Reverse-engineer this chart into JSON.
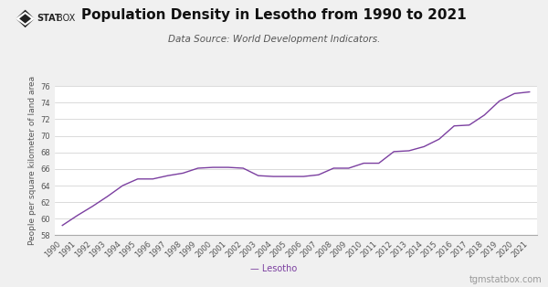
{
  "years": [
    1990,
    1991,
    1992,
    1993,
    1994,
    1995,
    1996,
    1997,
    1998,
    1999,
    2000,
    2001,
    2002,
    2003,
    2004,
    2005,
    2006,
    2007,
    2008,
    2009,
    2010,
    2011,
    2012,
    2013,
    2014,
    2015,
    2016,
    2017,
    2018,
    2019,
    2020,
    2021
  ],
  "values": [
    59.2,
    60.4,
    61.5,
    62.7,
    64.0,
    64.8,
    64.8,
    65.2,
    65.5,
    66.1,
    66.2,
    66.2,
    66.1,
    65.2,
    65.1,
    65.1,
    65.1,
    65.3,
    66.1,
    66.1,
    66.7,
    66.7,
    68.1,
    68.2,
    68.7,
    69.6,
    71.2,
    71.3,
    72.5,
    74.2,
    75.1,
    75.3
  ],
  "title": "Population Density in Lesotho from 1990 to 2021",
  "subtitle": "Data Source: World Development Indicators.",
  "ylabel": "People per square kilometer of land area",
  "legend_label": "Lesotho",
  "line_color": "#7B3FA0",
  "bg_color": "#f0f0f0",
  "plot_bg_color": "#ffffff",
  "ylim": [
    58,
    76
  ],
  "yticks": [
    58,
    60,
    62,
    64,
    66,
    68,
    70,
    72,
    74,
    76
  ],
  "watermark": "tgmstatbox.com",
  "logo_text_stat": "STAT",
  "logo_text_box": "BOX",
  "title_fontsize": 11,
  "subtitle_fontsize": 7.5,
  "axis_fontsize": 6,
  "ylabel_fontsize": 6.5
}
